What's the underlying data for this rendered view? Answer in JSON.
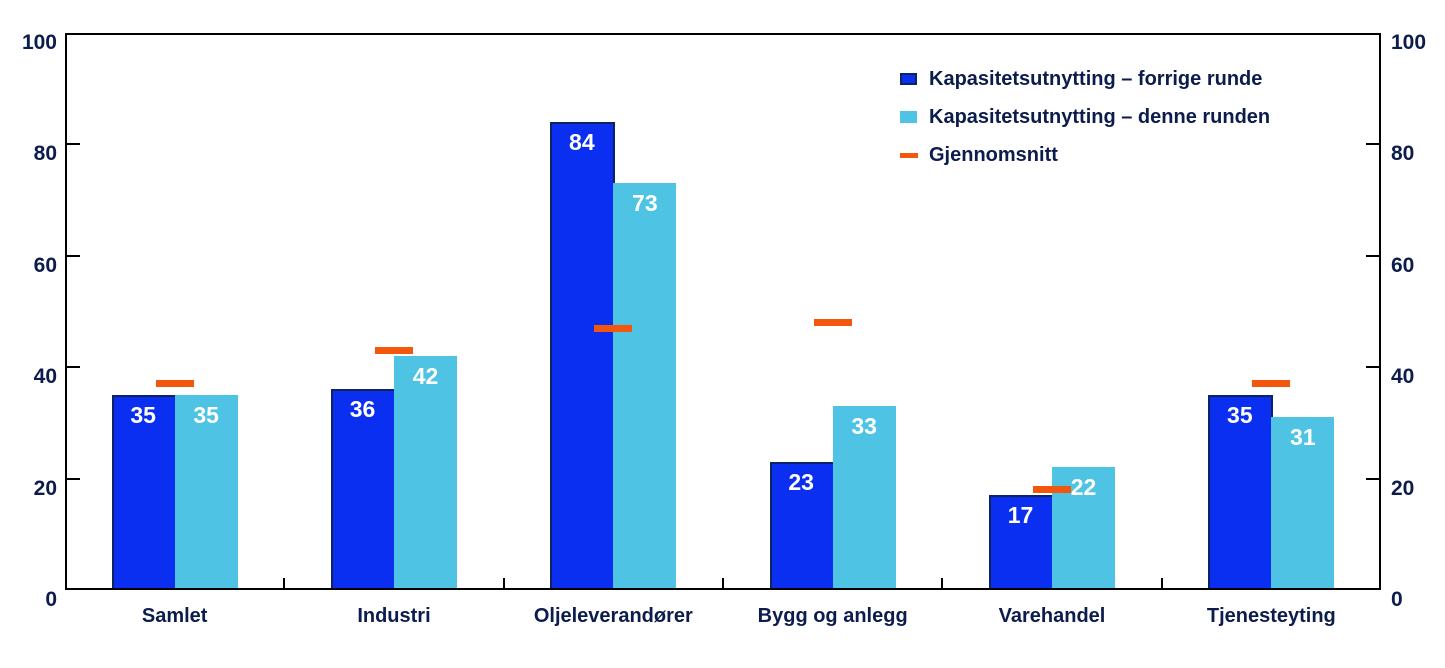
{
  "chart_data": {
    "type": "bar",
    "categories": [
      "Samlet",
      "Industri",
      "Oljeleverandører",
      "Bygg og anlegg",
      "Varehandel",
      "Tjenesteyting"
    ],
    "series": [
      {
        "name": "Kapasitetsutnytting – forrige runde",
        "type": "bar",
        "color": "#0A2FF1",
        "border_color": "#0D2463",
        "values": [
          35,
          36,
          84,
          23,
          17,
          35
        ]
      },
      {
        "name": "Kapasitetsutnytting – denne runden",
        "type": "bar",
        "color": "#4EC3E3",
        "values": [
          35,
          42,
          73,
          33,
          22,
          31
        ]
      },
      {
        "name": "Gjennomsnitt",
        "type": "dash",
        "color": "#F3570E",
        "values": [
          37,
          43,
          47,
          48,
          18,
          37
        ]
      }
    ],
    "y_axis": {
      "min": 0,
      "max": 100,
      "ticks": [
        0,
        20,
        40,
        60,
        80,
        100
      ],
      "sides": [
        "left",
        "right"
      ]
    },
    "legend": {
      "position": "top-right"
    },
    "value_labels": {
      "show": true,
      "color": "#FFFFFF"
    },
    "grid": false,
    "frame": true
  },
  "colors": {
    "background": "#FFFFFF",
    "frame": "#000000",
    "text": "#0C1C4D"
  }
}
